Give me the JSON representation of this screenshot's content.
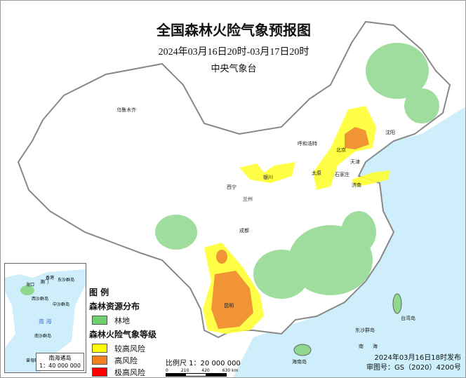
{
  "title": "全国森林火险气象预报图",
  "date_range": "2024年03月16日20时-03月17日20时",
  "issuer": "中央气象台",
  "legend": {
    "heading": "图 例",
    "forest_section": "森林资源分布",
    "forest_item": "林地",
    "risk_section": "森林火险气象等级",
    "risk_items": [
      {
        "label": "较高风险",
        "color": "#ffff00"
      },
      {
        "label": "高风险",
        "color": "#f08020"
      },
      {
        "label": "极高风险",
        "color": "#ff0000"
      }
    ],
    "forest_color": "#70d070"
  },
  "scale": {
    "label": "比例尺 1：20 000 000",
    "ticks": [
      "0",
      "210",
      "420",
      "630 km"
    ]
  },
  "issue_time": "2024年03月16日18时发布",
  "map_number": "审图号：GS（2020）4200号",
  "inset": {
    "title": "南海诸岛",
    "scale": "1：40 000 000",
    "label_sea": "南 海",
    "labels": [
      "香港",
      "澳门",
      "海口",
      "东沙群岛",
      "西沙群岛",
      "中沙群岛",
      "南沙群岛",
      "曾母暗沙"
    ]
  },
  "cities": [
    "北京",
    "天津",
    "石家庄",
    "太原",
    "济南",
    "呼和浩特",
    "银川",
    "沈阳",
    "西宁",
    "兰州",
    "昆明",
    "乌鲁木齐",
    "成都",
    "台湾岛",
    "海南岛",
    "东沙群岛"
  ],
  "sea_labels": [
    "南",
    "海"
  ],
  "colors": {
    "sea": "#cdeefa",
    "land": "#ffffff",
    "border": "#888888"
  }
}
